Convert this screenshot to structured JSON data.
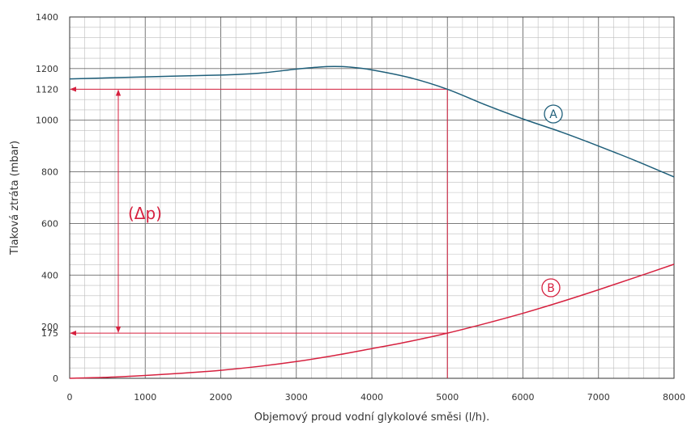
{
  "chart_data": {
    "type": "line",
    "xlabel": "Objemový proud vodní glykolové směsi (l/h).",
    "ylabel": "Tlaková ztráta (mbar)",
    "xlim": [
      0,
      8000
    ],
    "ylim": [
      0,
      1400
    ],
    "x_ticks": [
      "0",
      "1000",
      "2000",
      "3000",
      "4000",
      "5000",
      "6000",
      "7000",
      "8000"
    ],
    "y_ticks": [
      "0",
      "200",
      "400",
      "600",
      "800",
      "1000",
      "1200",
      "1400"
    ],
    "grid": true,
    "series": [
      {
        "name": "A",
        "color": "#1f5f7a",
        "x": [
          0,
          1000,
          2000,
          2500,
          3000,
          3300,
          3500,
          3700,
          4000,
          4500,
          5000,
          5500,
          6000,
          6500,
          7000,
          7500,
          8000
        ],
        "y": [
          1160,
          1168,
          1175,
          1182,
          1198,
          1206,
          1208,
          1206,
          1195,
          1165,
          1120,
          1060,
          1005,
          955,
          900,
          842,
          780
        ]
      },
      {
        "name": "B",
        "color": "#d6213f",
        "x": [
          0,
          500,
          1000,
          1500,
          2000,
          2500,
          3000,
          3500,
          4000,
          4500,
          5000,
          5500,
          6000,
          6500,
          7000,
          7500,
          8000
        ],
        "y": [
          0,
          4,
          11,
          20,
          31,
          46,
          65,
          88,
          115,
          143,
          175,
          212,
          252,
          296,
          343,
          392,
          442
        ]
      }
    ],
    "annotations": {
      "operating_flow": "5000",
      "dp_high": "1120",
      "dp_low": "175",
      "dp_label": "(Δp)",
      "marker_a": "A",
      "marker_b": "B"
    },
    "colors": {
      "accent": "#d6213f",
      "curve_a": "#1f5f7a"
    }
  }
}
